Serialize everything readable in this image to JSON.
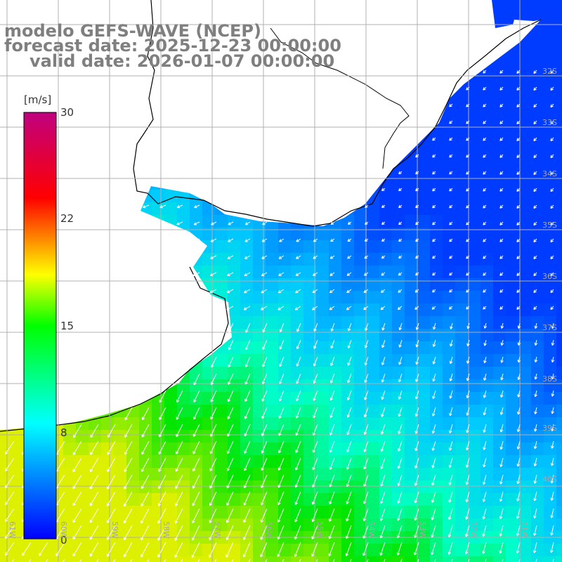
{
  "header": {
    "line1": "modelo GEFS-WAVE (NCEP)",
    "line2": "forecast date: 2025-12-23 00:00:00",
    "line3": "valid date: 2026-01-07 00:00:00"
  },
  "colorbar": {
    "unit": "[m/s]",
    "range": [
      0,
      30
    ],
    "ticks": [
      {
        "value": 30,
        "label": "30"
      },
      {
        "value": 22,
        "label": "22"
      },
      {
        "value": 15,
        "label": "15"
      },
      {
        "value": 8,
        "label": "8"
      },
      {
        "value": 0,
        "label": "0"
      }
    ]
  },
  "map": {
    "lat_labels": [
      "32S",
      "33S",
      "34S",
      "35S",
      "36S",
      "37S",
      "38S",
      "39S",
      "40S"
    ],
    "lon_labels": [
      "61W",
      "60W",
      "59W",
      "58W",
      "57W",
      "56W",
      "55W",
      "54W",
      "53W",
      "52W",
      "51W"
    ],
    "land_color": "#ffffff",
    "grid_color": "#b0b0b0",
    "arrow_color": "#ffffff"
  }
}
